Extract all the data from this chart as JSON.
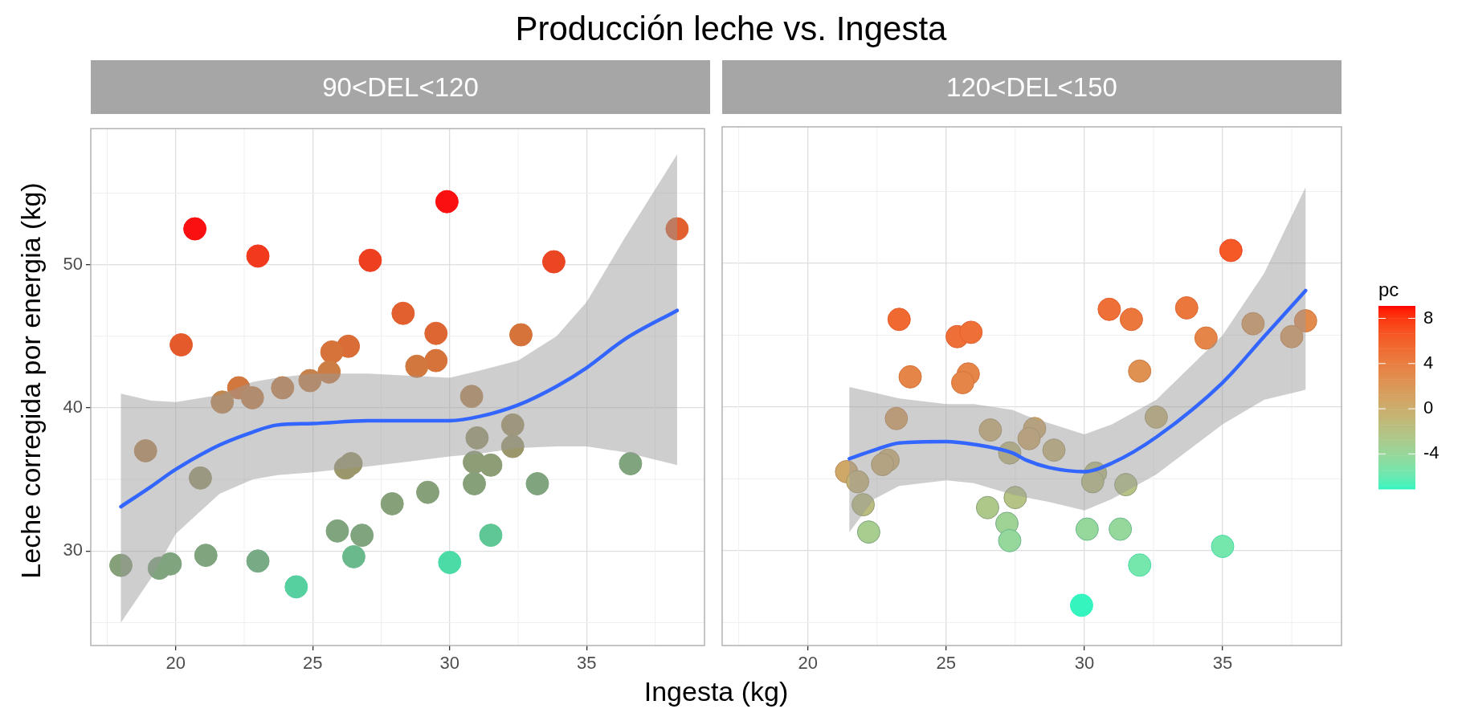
{
  "chart_data": [
    {
      "type": "scatter",
      "title": "Producción leche vs. Ingesta",
      "subtitle": "90<DEL<120",
      "xlabel": "Ingesta (kg)",
      "ylabel": "Leche corregida por energia (kg)",
      "xlim": [
        16.9,
        39.3
      ],
      "xticks": [
        20,
        25,
        30,
        35
      ],
      "ylim": [
        23.4,
        59.5
      ],
      "yticks": [
        30,
        40,
        50
      ],
      "grid": true,
      "marker": "circle",
      "series": [
        {
          "type": "line",
          "marker": "none",
          "color": "#3366ff",
          "x": [
            18.0,
            19.1,
            20.0,
            21.6,
            22.8,
            23.7,
            25.0,
            27.0,
            30.0,
            31.1,
            32.5,
            33.9,
            35.0,
            36.4,
            38.3
          ],
          "values": [
            33.1,
            34.5,
            35.7,
            37.4,
            38.3,
            38.8,
            38.9,
            39.1,
            39.1,
            39.4,
            40.2,
            41.5,
            42.8,
            44.8,
            46.8
          ],
          "upper": [
            41.0,
            40.5,
            40.4,
            40.9,
            41.8,
            42.1,
            42.4,
            42.4,
            42.1,
            42.6,
            43.3,
            45.0,
            47.4,
            51.9,
            57.7
          ],
          "lower": [
            25.0,
            28.1,
            31.2,
            34.0,
            35.0,
            35.3,
            35.5,
            35.9,
            36.6,
            36.8,
            37.2,
            37.3,
            37.3,
            36.9,
            36.0
          ]
        },
        {
          "type": "scatter",
          "x": [
            20.7,
            23.0,
            27.1,
            28.3,
            20.2,
            26.3,
            25.7,
            25.6,
            24.9,
            23.9,
            22.3,
            22.8,
            21.7,
            18.9,
            20.9,
            26.4,
            26.2,
            27.9,
            25.9,
            26.8,
            26.5,
            18.0,
            19.4,
            19.8,
            21.1,
            23.0,
            24.4,
            29.9,
            38.3,
            33.8,
            29.5,
            32.6,
            29.5,
            28.8,
            30.8,
            32.3,
            31.0,
            32.3,
            30.9,
            31.5,
            30.9,
            33.2,
            29.2,
            36.6,
            31.5,
            30.0
          ],
          "values": [
            52.5,
            50.6,
            50.3,
            46.6,
            44.4,
            44.3,
            43.9,
            42.5,
            41.9,
            41.4,
            41.4,
            40.7,
            40.4,
            37.0,
            35.1,
            36.1,
            35.8,
            33.3,
            31.4,
            31.1,
            29.6,
            29.0,
            28.8,
            29.1,
            29.7,
            29.3,
            27.5,
            54.4,
            52.5,
            50.2,
            45.2,
            45.1,
            43.3,
            42.9,
            40.8,
            38.8,
            37.9,
            37.3,
            36.2,
            36.0,
            34.7,
            34.7,
            34.1,
            36.1,
            31.1,
            29.2
          ],
          "colors": [
            "#fa1010",
            "#f2381d",
            "#ee3f20",
            "#e26030",
            "#e55a2b",
            "#da6c37",
            "#d5733b",
            "#cc7d44",
            "#c7814a",
            "#c7814a",
            "#d1783f",
            "#c7814a",
            "#c2864f",
            "#bb8a55",
            "#9c976a",
            "#9c976a",
            "#9c976a",
            "#86a17a",
            "#7fa47e",
            "#7fa47e",
            "#6ab98d",
            "#86a17a",
            "#7fa47e",
            "#7fa47e",
            "#7fa47e",
            "#76ab85",
            "#55d09e",
            "#fa1010",
            "#e26030",
            "#eb4624",
            "#de6633",
            "#d5733b",
            "#d5733b",
            "#d1783f",
            "#bb8a55",
            "#a49465",
            "#9c976a",
            "#9c976a",
            "#8d9d75",
            "#8d9d75",
            "#86a17a",
            "#7fa47e",
            "#86a17a",
            "#7fa47e",
            "#5fc695",
            "#4adba6"
          ]
        }
      ]
    },
    {
      "type": "scatter",
      "subtitle": "120<DEL<150",
      "tick_labels": "x",
      "clabel": "pc",
      "xlim": [
        16.9,
        39.3
      ],
      "xticks": [
        20,
        25,
        30,
        35
      ],
      "ylim": [
        23.4,
        59.5
      ],
      "yticks": [
        30,
        40,
        50
      ],
      "grid": true,
      "marker": "circle",
      "clim": [
        -7.1,
        9.1
      ],
      "cticks": [
        -4,
        0,
        4,
        8
      ],
      "series": [
        {
          "type": "line",
          "marker": "none",
          "color": "#3366ff",
          "x": [
            21.5,
            22.4,
            23.3,
            25.0,
            26.0,
            27.4,
            27.9,
            28.7,
            30.0,
            31.0,
            32.6,
            35.0,
            36.5,
            38.0
          ],
          "values": [
            36.4,
            37.0,
            37.5,
            37.6,
            37.4,
            36.8,
            36.3,
            35.8,
            35.5,
            36.1,
            37.9,
            41.7,
            44.9,
            48.1
          ],
          "upper": [
            41.4,
            41.0,
            40.6,
            40.2,
            40.2,
            39.8,
            39.4,
            38.9,
            38.1,
            38.8,
            40.5,
            45.0,
            49.3,
            55.3
          ],
          "lower": [
            31.3,
            33.6,
            34.5,
            34.9,
            34.7,
            33.9,
            33.7,
            33.4,
            32.8,
            33.6,
            35.3,
            38.8,
            40.5,
            41.2
          ]
        },
        {
          "type": "scatter",
          "x": [
            23.3,
            25.4,
            25.9,
            23.7,
            25.8,
            25.6,
            23.2,
            26.6,
            28.2,
            28.0,
            27.3,
            28.9,
            22.9,
            22.7,
            21.4,
            21.8,
            22.0,
            22.2,
            26.5,
            27.5,
            27.2,
            27.3,
            35.3,
            30.9,
            31.7,
            33.7,
            34.4,
            32.0,
            36.1,
            38.0,
            37.5,
            32.6,
            30.4,
            30.3,
            31.5,
            30.1,
            31.3,
            32.0,
            35.0,
            29.9
          ],
          "values": [
            46.1,
            44.9,
            45.2,
            42.1,
            42.3,
            41.7,
            39.2,
            38.4,
            38.5,
            37.8,
            36.8,
            37.0,
            36.3,
            36.0,
            35.5,
            34.8,
            33.2,
            31.3,
            33.0,
            33.7,
            31.9,
            30.7,
            50.9,
            46.8,
            46.1,
            46.9,
            44.8,
            42.5,
            45.8,
            46.0,
            44.9,
            39.3,
            35.4,
            34.8,
            34.6,
            31.5,
            31.5,
            29.0,
            30.3,
            26.2
          ],
          "cvalues": [
            5.5,
            5,
            5,
            3.5,
            3.5,
            3.5,
            1.5,
            0,
            0.5,
            0.5,
            -1,
            -0.5,
            0,
            0,
            0.5,
            -0.5,
            -1.5,
            -3,
            -2.5,
            -2,
            -3.5,
            -4,
            6.5,
            5,
            4.5,
            4.5,
            3.5,
            2.5,
            2,
            3,
            2,
            -0.5,
            -1.5,
            -1.5,
            -2,
            -4,
            -4,
            -5.5,
            -5.5,
            -7
          ],
          "colors": [
            "#e55a2b",
            "#e26030",
            "#e26030",
            "#d5733b",
            "#d5733b",
            "#d5733b",
            "#c2864f",
            "#ab915f",
            "#b38d5a",
            "#b38d5a",
            "#9c976a",
            "#a49465",
            "#ab915f",
            "#ab915f",
            "#b38d5a",
            "#a49465",
            "#959a70",
            "#7fa47e",
            "#86a17a",
            "#8d9d75",
            "#76ab85",
            "#6ab98d",
            "#eb4624",
            "#e26030",
            "#de6633",
            "#de6633",
            "#d5733b",
            "#cc7d44",
            "#c7814a",
            "#d1783f",
            "#c7814a",
            "#a49465",
            "#959a70",
            "#959a70",
            "#8d9d75",
            "#6ab98d",
            "#6ab98d",
            "#4adba6",
            "#4adba6",
            "#2ef5bf"
          ]
        }
      ]
    }
  ]
}
